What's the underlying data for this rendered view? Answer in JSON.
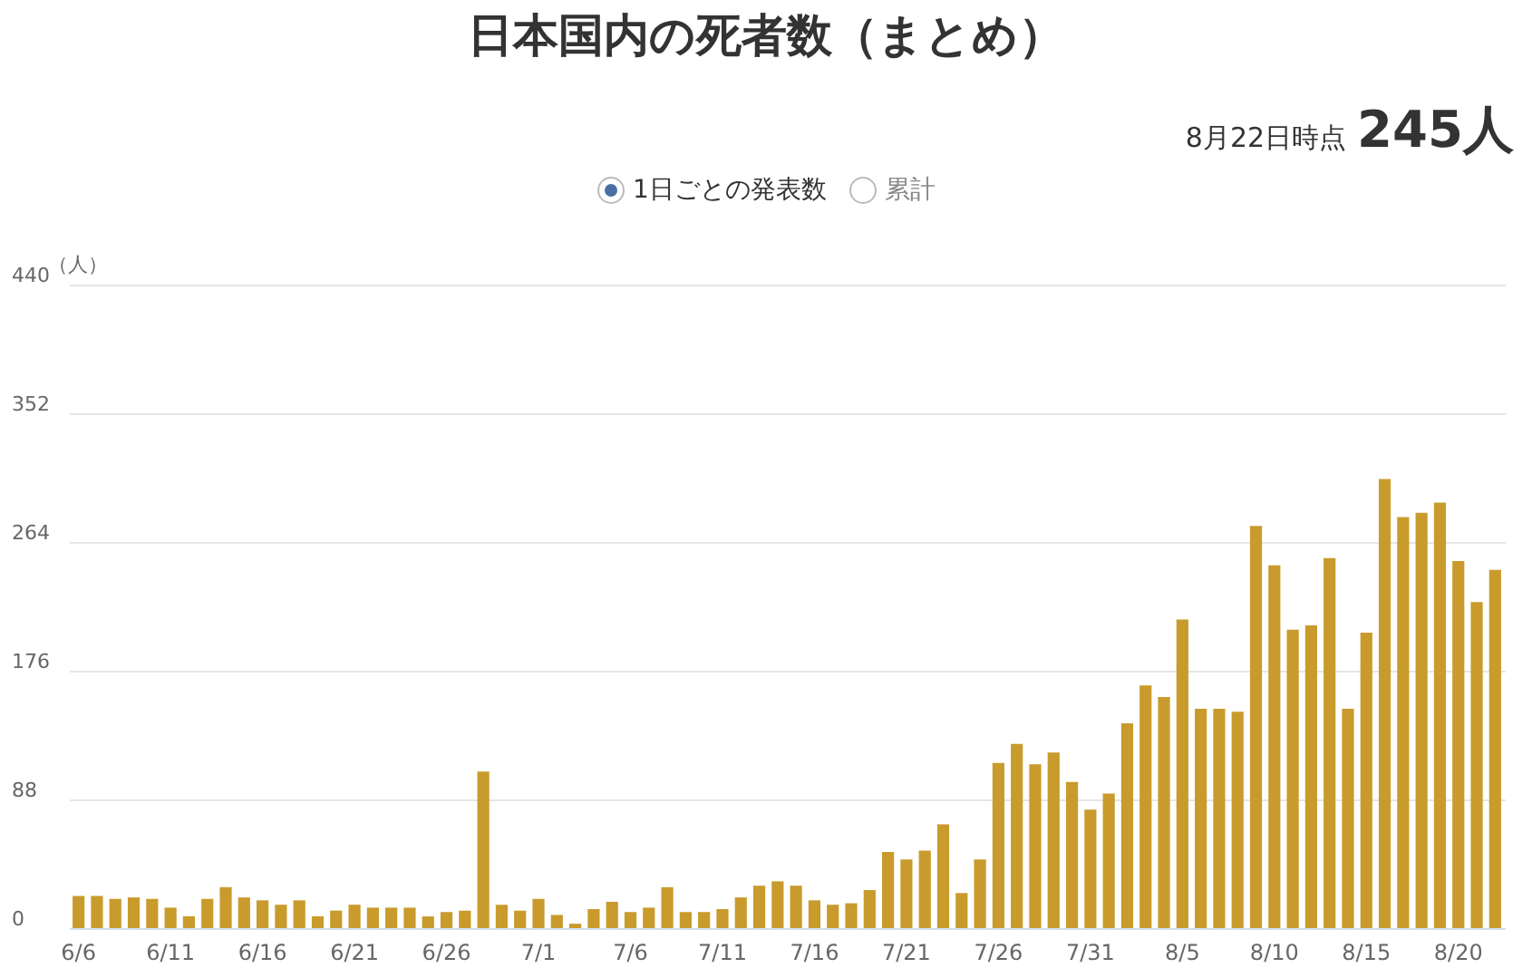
{
  "chart_data": {
    "type": "bar",
    "title": "日本国内の死者数（まとめ）",
    "ylabel": "（人）",
    "annotations": [
      "8月22日時点",
      "245人",
      "1日ごとの発表数",
      "累計"
    ],
    "categories": [
      "6/6",
      null,
      null,
      null,
      null,
      "6/11",
      null,
      null,
      null,
      null,
      "6/16",
      null,
      null,
      null,
      null,
      "6/21",
      null,
      null,
      null,
      null,
      "6/26",
      null,
      null,
      null,
      null,
      "7/1",
      null,
      null,
      null,
      null,
      "7/6",
      null,
      null,
      null,
      null,
      "7/11",
      null,
      null,
      null,
      null,
      "7/16",
      null,
      null,
      null,
      null,
      "7/21",
      null,
      null,
      null,
      null,
      "7/26",
      null,
      null,
      null,
      null,
      "7/31",
      null,
      null,
      null,
      null,
      "8/5",
      null,
      null,
      null,
      null,
      "8/10",
      null,
      null,
      null,
      null,
      "8/15",
      null,
      null,
      null,
      null,
      "8/20",
      null,
      null
    ],
    "values": [
      22,
      22,
      20,
      21,
      20,
      14,
      8,
      20,
      28,
      21,
      19,
      16,
      19,
      8,
      12,
      16,
      14,
      14,
      14,
      8,
      11,
      12,
      107,
      16,
      12,
      20,
      9,
      3,
      13,
      18,
      11,
      14,
      28,
      11,
      11,
      13,
      21,
      29,
      32,
      29,
      19,
      16,
      17,
      26,
      52,
      47,
      53,
      71,
      24,
      47,
      113,
      126,
      112,
      120,
      100,
      81,
      92,
      140,
      166,
      158,
      211,
      150,
      150,
      148,
      275,
      248,
      204,
      207,
      253,
      150,
      202,
      307,
      281,
      284,
      291,
      251,
      223,
      245
    ],
    "color": "#c89b2c",
    "ylim": [
      0,
      440
    ],
    "yticks": [
      0,
      88,
      176,
      264,
      352,
      440
    ],
    "grid": "y"
  }
}
